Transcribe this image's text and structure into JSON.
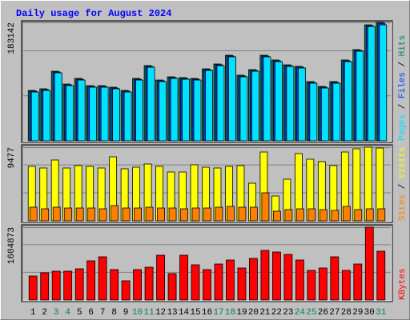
{
  "chart_data": {
    "type": "bar",
    "title": "Daily usage for August 2024",
    "categories": [
      "1",
      "2",
      "3",
      "4",
      "5",
      "6",
      "7",
      "8",
      "9",
      "10",
      "11",
      "12",
      "13",
      "14",
      "15",
      "16",
      "17",
      "18",
      "19",
      "20",
      "21",
      "22",
      "23",
      "24",
      "25",
      "26",
      "27",
      "28",
      "29",
      "30",
      "31"
    ],
    "category_colors": [
      "#000000",
      "#000000",
      "#00805c",
      "#00805c",
      "#000000",
      "#000000",
      "#000000",
      "#000000",
      "#000000",
      "#00805c",
      "#00805c",
      "#000000",
      "#000000",
      "#000000",
      "#000000",
      "#000000",
      "#00805c",
      "#00805c",
      "#000000",
      "#000000",
      "#000000",
      "#000000",
      "#000000",
      "#00805c",
      "#00805c",
      "#000000",
      "#000000",
      "#000000",
      "#000000",
      "#000000",
      "#00805c"
    ],
    "panels": [
      {
        "ylim": [
          0,
          183142
        ],
        "yticks": [
          183142
        ],
        "series": [
          {
            "name": "Hits",
            "color": "#00805c",
            "values": [
              77900,
              80400,
              107600,
              87800,
              96500,
              85300,
              85300,
              82900,
              77900,
              96500,
              116300,
              94000,
              99000,
              97700,
              96500,
              111300,
              118800,
              132400,
              101500,
              110100,
              132400,
              125000,
              117500,
              115100,
              91600,
              84100,
              91600,
              125000,
              141000,
              179400,
              183142
            ]
          },
          {
            "name": "Files",
            "color": "#0040ff",
            "values": [
              76700,
              79100,
              106400,
              86600,
              95200,
              84100,
              84100,
              81600,
              76700,
              95200,
              115000,
              92800,
              97700,
              96500,
              95200,
              110100,
              117500,
              131100,
              100200,
              108900,
              131100,
              123700,
              116300,
              113800,
              90300,
              82900,
              90300,
              123700,
              139800,
              178100,
              181800
            ]
          },
          {
            "name": "Pages",
            "color": "#00e0ff",
            "values": [
              75457,
              77931,
              105145,
              85353,
              94012,
              82879,
              82879,
              80405,
              75457,
              94012,
              113804,
              91538,
              96486,
              95249,
              94012,
              108856,
              116278,
              129885,
              98960,
              107619,
              129885,
              122463,
              115041,
              112567,
              89064,
              81642,
              89064,
              122463,
              138544,
              176891,
              179365
            ]
          }
        ]
      },
      {
        "ylim": [
          0,
          9477
        ],
        "yticks": [
          9477
        ],
        "series": [
          {
            "name": "Visits",
            "color": "#ffff00",
            "values": [
              7004,
              6798,
              7828,
              6798,
              7107,
              7004,
              6798,
              8240,
              6695,
              6901,
              7313,
              7004,
              6283,
              6283,
              7210,
              6901,
              6798,
              7004,
              7107,
              4841,
              8858,
              3193,
              5356,
              8652,
              7931,
              7622,
              7107,
              8858,
              9270,
              9477,
              9373
            ]
          },
          {
            "name": "Sites",
            "color": "#ff8000",
            "values": [
              1751,
              1545,
              1751,
              1648,
              1648,
              1648,
              1545,
              1957,
              1648,
              1648,
              1751,
              1648,
              1648,
              1545,
              1648,
              1648,
              1751,
              1854,
              1751,
              1751,
              3605,
              1236,
              1442,
              1545,
              1545,
              1442,
              1339,
              1854,
              1442,
              1545,
              1545
            ]
          }
        ]
      },
      {
        "ylim": [
          0,
          1604873
        ],
        "yticks": [
          1604873
        ],
        "series": [
          {
            "name": "KBytes",
            "color": "#ff0000",
            "values": [
              529080,
              599624,
              634896,
              634896,
              687804,
              864164,
              952344,
              670168,
              423264,
              670168,
              723076,
              987616,
              581988,
              987616,
              775984,
              670168,
              793620,
              881800,
              705440,
              917072,
              1093432,
              1058160,
              1005252,
              881800,
              652532,
              705440,
              952344,
              652532,
              793620,
              1604873,
              1075796
            ]
          }
        ]
      }
    ]
  }
}
